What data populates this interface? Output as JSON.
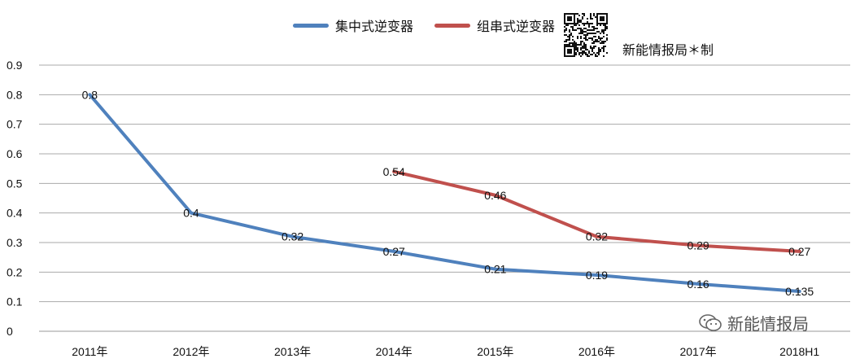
{
  "chart_data": {
    "type": "line",
    "title": "",
    "xlabel": "",
    "ylabel": "",
    "categories": [
      "2011年",
      "2012年",
      "2013年",
      "2014年",
      "2015年",
      "2016年",
      "2017年",
      "2018H1"
    ],
    "ylim": [
      0,
      0.9
    ],
    "yticks": [
      "0",
      "0.1",
      "0.2",
      "0.3",
      "0.4",
      "0.5",
      "0.6",
      "0.7",
      "0.8",
      "0.9"
    ],
    "grid": true,
    "legend_position": "top-center",
    "series": [
      {
        "name": "集中式逆变器",
        "color": "#4f81bd",
        "values": [
          0.8,
          0.4,
          0.32,
          0.27,
          0.21,
          0.19,
          0.16,
          0.135
        ],
        "labels": [
          "0.8",
          "0.4",
          "0.32",
          "0.27",
          "0.21",
          "0.19",
          "0.16",
          "0.135"
        ]
      },
      {
        "name": "组串式逆变器",
        "color": "#c0504d",
        "values": [
          null,
          null,
          null,
          0.54,
          0.46,
          0.32,
          0.29,
          0.27
        ],
        "labels": [
          null,
          null,
          null,
          "0.54",
          "0.46",
          "0.32",
          "0.29",
          "0.27"
        ]
      }
    ]
  },
  "legend": {
    "series1_label": "集中式逆变器",
    "series2_label": "组串式逆变器"
  },
  "credit_text": "新能情报局＊制",
  "watermark_text": "新能情报局",
  "icons": {
    "qr": "qr-code-icon",
    "wechat": "wechat-icon"
  }
}
